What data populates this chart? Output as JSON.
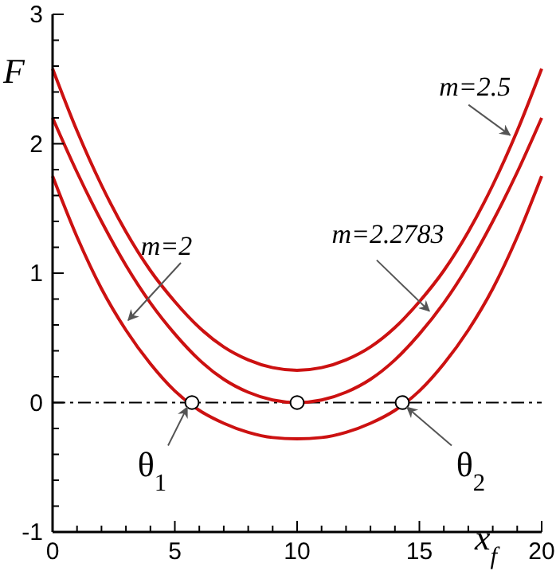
{
  "chart_data": {
    "type": "line",
    "xlabel": "x$_{f}$",
    "ylabel": "F",
    "x": [
      0,
      1,
      2,
      3,
      4,
      5,
      6,
      7,
      8,
      9,
      10,
      11,
      12,
      13,
      14,
      15,
      16,
      17,
      18,
      19,
      20
    ],
    "xlim": [
      0,
      20
    ],
    "ylim": [
      -1,
      3
    ],
    "xticks": [
      0,
      5,
      10,
      15,
      20
    ],
    "yticks": [
      -1,
      0,
      1,
      2,
      3
    ],
    "grid": false,
    "marker": "none",
    "line_style": "solid",
    "series": [
      {
        "color": "#cc1111",
        "values": [
          2.58,
          2.1,
          1.68,
          1.32,
          1.02,
          0.78,
          0.58,
          0.43,
          0.33,
          0.27,
          0.25,
          0.27,
          0.33,
          0.43,
          0.58,
          0.78,
          1.02,
          1.32,
          1.68,
          2.1,
          2.58
        ]
      },
      {
        "color": "#cc1111",
        "values": [
          2.2,
          1.78,
          1.4,
          1.06,
          0.77,
          0.53,
          0.33,
          0.18,
          0.08,
          0.02,
          0,
          0.02,
          0.08,
          0.18,
          0.33,
          0.53,
          0.77,
          1.06,
          1.4,
          1.78,
          2.2
        ]
      },
      {
        "color": "#cc1111",
        "values": [
          1.75,
          1.28,
          0.88,
          0.56,
          0.3,
          0.09,
          -0.06,
          -0.16,
          -0.23,
          -0.27,
          -0.28,
          -0.27,
          -0.23,
          -0.16,
          -0.06,
          0.09,
          0.3,
          0.56,
          0.88,
          1.28,
          1.75
        ]
      },
      {
        "type": "scatter",
        "marker": "circle",
        "color": "#ffffff",
        "x": [
          5.7,
          10,
          14.3
        ],
        "values": [
          0,
          0,
          0
        ]
      }
    ],
    "ref_lines": [
      {
        "axis": "y",
        "value": 0,
        "color": "#000000",
        "line_style": "dashdot"
      }
    ],
    "annotations": [
      {
        "text": "m=2",
        "x": 2.9,
        "y": 0.6
      },
      {
        "text": "m=2.2783",
        "x": 15.6,
        "y": 0.67
      },
      {
        "text": "m=2.5",
        "x": 18.9,
        "y": 2.03
      },
      {
        "text": "θ$_{1}$",
        "x": 5.7,
        "y": 0
      },
      {
        "text": "θ$_{2}$",
        "x": 14.3,
        "y": 0
      }
    ]
  }
}
